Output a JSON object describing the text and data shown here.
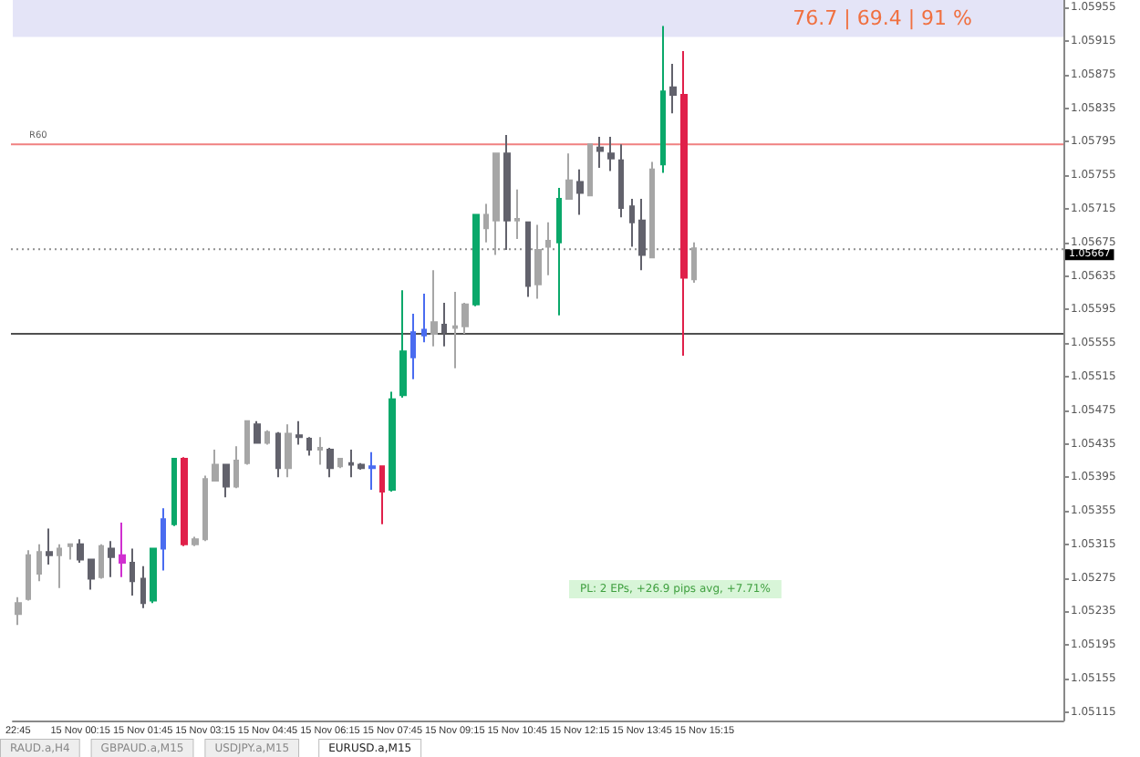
{
  "chart_data": {
    "type": "candlestick",
    "categories": [
      "22:45",
      null,
      null,
      null,
      null,
      null,
      "15 Nov 00:15",
      null,
      null,
      null,
      null,
      null,
      "15 Nov 01:45",
      null,
      null,
      null,
      null,
      null,
      "15 Nov 03:15",
      null,
      null,
      null,
      null,
      null,
      "15 Nov 04:45",
      null,
      null,
      null,
      null,
      null,
      "15 Nov 06:15",
      null,
      null,
      null,
      null,
      null,
      "15 Nov 07:45",
      null,
      null,
      null,
      null,
      null,
      "15 Nov 09:15",
      null,
      null,
      null,
      null,
      null,
      "15 Nov 10:45",
      null,
      null,
      null,
      null,
      null,
      "15 Nov 12:15",
      null,
      null,
      null,
      null,
      null,
      "15 Nov 13:45",
      null,
      null,
      null,
      null,
      null,
      "15 Nov 15:15",
      null,
      null,
      null,
      null,
      null,
      null,
      null,
      null,
      null,
      null,
      null,
      null,
      null,
      null,
      null,
      null,
      null,
      null,
      null,
      null,
      null,
      null,
      null,
      null,
      null,
      null,
      null,
      null,
      null,
      null,
      null,
      null,
      null,
      null
    ],
    "ohlc": [
      [
        1.05232,
        1.05252,
        1.05219,
        1.05245
      ],
      [
        1.0525,
        1.05308,
        1.05248,
        1.05302
      ],
      [
        1.0528,
        1.05315,
        1.05271,
        1.05306
      ],
      [
        1.05306,
        1.05334,
        1.05291,
        1.05302
      ],
      [
        1.05302,
        1.05315,
        1.05263,
        1.0531
      ],
      [
        1.05313,
        1.05315,
        1.05297,
        1.05315
      ],
      [
        1.05315,
        1.05321,
        1.05293,
        1.05297
      ],
      [
        1.05297,
        1.05297,
        1.05261,
        1.05274
      ],
      [
        1.05276,
        1.05315,
        1.05274,
        1.05313
      ],
      [
        1.0531,
        1.05319,
        1.05276,
        1.053
      ],
      [
        1.05302,
        1.05341,
        1.05276,
        1.05293
      ],
      [
        1.05293,
        1.0531,
        1.05254,
        1.05271
      ],
      [
        1.05274,
        1.05289,
        1.05239,
        1.05245
      ],
      [
        1.05248,
        1.0531,
        1.05245,
        1.0531
      ],
      [
        1.0531,
        1.05358,
        1.05284,
        1.05345
      ],
      [
        1.05339,
        1.05417,
        1.05337,
        1.05417
      ],
      [
        1.05417,
        1.05419,
        1.05313,
        1.05315
      ],
      [
        1.05315,
        1.05324,
        1.05313,
        1.05321
      ],
      [
        1.05321,
        1.05397,
        1.05319,
        1.05393
      ],
      [
        1.05391,
        1.05428,
        1.05391,
        1.0541
      ],
      [
        1.0541,
        1.0541,
        1.05371,
        1.05384
      ],
      [
        1.05384,
        1.05432,
        1.05382,
        1.05415
      ],
      [
        1.05412,
        1.05462,
        1.0541,
        1.05462
      ],
      [
        1.05458,
        1.05462,
        1.05436,
        1.05436
      ],
      [
        1.05436,
        1.05451,
        1.05434,
        1.05449
      ],
      [
        1.05447,
        1.05449,
        1.05395,
        1.05406
      ],
      [
        1.05406,
        1.05458,
        1.05395,
        1.05447
      ],
      [
        1.05445,
        1.05462,
        1.05434,
        1.05443
      ],
      [
        1.05441,
        1.05443,
        1.05421,
        1.05428
      ],
      [
        1.05428,
        1.05443,
        1.0541,
        1.0543
      ],
      [
        1.05428,
        1.0543,
        1.05395,
        1.05406
      ],
      [
        1.05408,
        1.05417,
        1.05406,
        1.05417
      ],
      [
        1.05412,
        1.05428,
        1.05395,
        1.0541
      ],
      [
        1.0541,
        1.05412,
        1.05404,
        1.05406
      ],
      [
        1.05406,
        1.05425,
        1.0538,
        1.05408
      ],
      [
        1.05408,
        1.05408,
        1.05339,
        1.05378
      ],
      [
        1.0538,
        1.05497,
        1.05378,
        1.05488
      ],
      [
        1.05493,
        1.05618,
        1.0549,
        1.05545
      ],
      [
        1.05538,
        1.0559,
        1.05512,
        1.05568
      ],
      [
        1.05564,
        1.05614,
        1.05556,
        1.05571
      ],
      [
        1.05566,
        1.05642,
        1.05551,
        1.0558
      ],
      [
        1.05577,
        1.05603,
        1.05551,
        1.05568
      ],
      [
        1.05573,
        1.05616,
        1.05525,
        1.05575
      ],
      [
        1.05575,
        1.05603,
        1.05566,
        1.05601
      ],
      [
        1.05601,
        1.05708,
        1.05599,
        1.05708
      ],
      [
        1.05692,
        1.05721,
        1.05675,
        1.05708
      ],
      [
        1.05701,
        1.05781,
        1.0566,
        1.05781
      ],
      [
        1.05781,
        1.05803,
        1.05666,
        1.05701
      ],
      [
        1.05701,
        1.05738,
        1.05679,
        1.05703
      ],
      [
        1.05699,
        1.05699,
        1.0561,
        1.05623
      ],
      [
        1.05625,
        1.05696,
        1.05608,
        1.05666
      ],
      [
        1.0567,
        1.05699,
        1.05636,
        1.05677
      ],
      [
        1.05675,
        1.0574,
        1.05588,
        1.05727
      ],
      [
        1.05727,
        1.05781,
        1.05727,
        1.05749
      ],
      [
        1.05747,
        1.05762,
        1.05708,
        1.05734
      ],
      [
        1.05731,
        1.05792,
        1.05731,
        1.05792
      ],
      [
        1.05788,
        1.05801,
        1.05764,
        1.05784
      ],
      [
        1.05781,
        1.05801,
        1.0576,
        1.05775
      ],
      [
        1.05773,
        1.05792,
        1.05705,
        1.05716
      ],
      [
        1.05718,
        1.05727,
        1.0567,
        1.05699
      ],
      [
        1.05701,
        1.05727,
        1.05642,
        1.0566
      ],
      [
        1.05657,
        1.05771,
        1.05657,
        1.05762
      ],
      [
        1.05768,
        1.05933,
        1.05758,
        1.05855
      ],
      [
        1.0586,
        1.05888,
        1.05829,
        1.05851
      ],
      [
        1.05851,
        1.05903,
        1.0554,
        1.05633
      ],
      [
        1.05631,
        1.05675,
        1.05627,
        1.05668
      ],
      null,
      null,
      null,
      null,
      null,
      null,
      null,
      null,
      null,
      null,
      null,
      null,
      null,
      null,
      null,
      null,
      null,
      null,
      null,
      null,
      null,
      null,
      null,
      null,
      null,
      null,
      null,
      null,
      null,
      null,
      null,
      null,
      null,
      null,
      null
    ],
    "colors": [
      "#a6a6a6",
      "#a6a6a6",
      "#a6a6a6",
      "#62626c",
      "#a6a6a6",
      "#a6a6a6",
      "#62626c",
      "#62626c",
      "#a6a6a6",
      "#62626c",
      "#d030d0",
      "#62626c",
      "#62626c",
      "#0aa86a",
      "#4a6cf0",
      "#0aa86a",
      "#e0204a",
      "#a6a6a6",
      "#a6a6a6",
      "#a6a6a6",
      "#62626c",
      "#a6a6a6",
      "#a6a6a6",
      "#62626c",
      "#a6a6a6",
      "#62626c",
      "#a6a6a6",
      "#62626c",
      "#62626c",
      "#a6a6a6",
      "#62626c",
      "#a6a6a6",
      "#62626c",
      "#62626c",
      "#4a6cf0",
      "#e0204a",
      "#0aa86a",
      "#0aa86a",
      "#4a6cf0",
      "#4a6cf0",
      "#a6a6a6",
      "#62626c",
      "#a6a6a6",
      "#a6a6a6",
      "#0aa86a",
      "#a6a6a6",
      "#a6a6a6",
      "#62626c",
      "#a6a6a6",
      "#62626c",
      "#a6a6a6",
      "#a6a6a6",
      "#0aa86a",
      "#a6a6a6",
      "#62626c",
      "#a6a6a6",
      "#62626c",
      "#62626c",
      "#62626c",
      "#62626c",
      "#62626c",
      "#a6a6a6",
      "#0aa86a",
      "#62626c",
      "#e0204a",
      "#a6a6a6",
      null,
      null,
      null,
      null,
      null,
      null,
      null,
      null,
      null,
      null,
      null,
      null,
      null,
      null,
      null,
      null,
      null,
      null,
      null,
      null,
      null,
      null,
      null,
      null,
      null,
      null,
      null,
      null,
      null,
      null,
      null,
      null,
      null,
      null,
      null
    ],
    "ylim": [
      1.05105,
      1.05964
    ],
    "yticks": [
      1.05115,
      1.05155,
      1.05195,
      1.05235,
      1.05275,
      1.05315,
      1.05355,
      1.05395,
      1.05435,
      1.05475,
      1.05515,
      1.05555,
      1.05595,
      1.05635,
      1.05675,
      1.05715,
      1.05755,
      1.05795,
      1.05835,
      1.05875,
      1.05915,
      1.05955
    ],
    "ref_lines": [
      {
        "axis": "y",
        "value": 1.05792,
        "label": "R60",
        "color": "#f08080",
        "line_style": "solid"
      },
      {
        "axis": "y",
        "value": 1.05566,
        "label": null,
        "color": "#505050",
        "line_style": "solid"
      },
      {
        "axis": "y",
        "value": 1.05667,
        "label": "1.05667",
        "color": "#909090",
        "line_style": "dotted"
      }
    ],
    "bands": [
      {
        "axis": "y",
        "from": 1.0592,
        "to": 1.05964,
        "label": "76.7 | 69.4 | 91 %",
        "color": "#e4e4f7"
      }
    ],
    "annotations": [
      "PL: 2 EPs, +26.9 pips avg, +7.71%",
      "RAUD.a,H4",
      "GBPAUD.a,M15",
      "USDJPY.a,M15",
      "EURUSD.a,M15"
    ]
  }
}
